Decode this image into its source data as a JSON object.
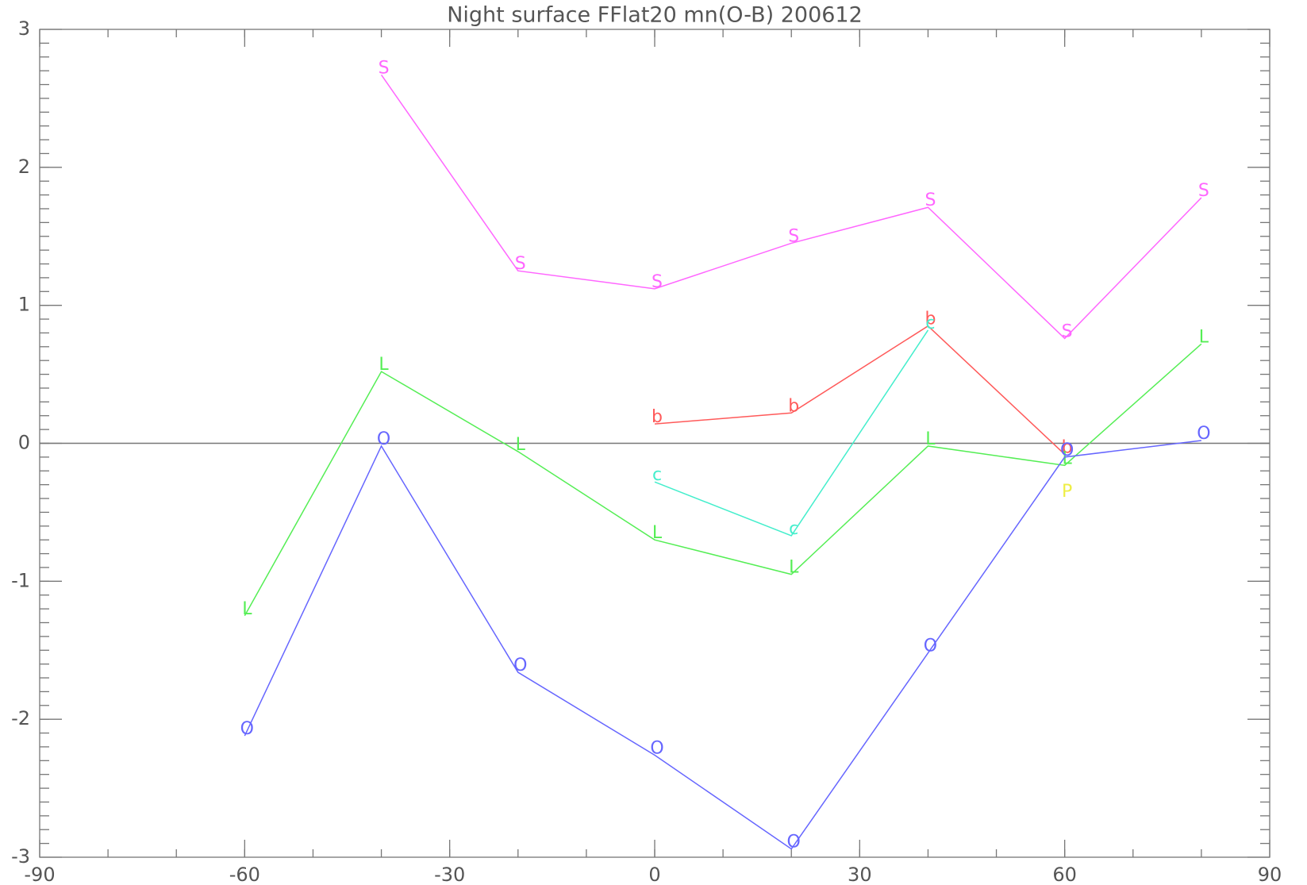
{
  "chart_data": {
    "type": "line",
    "title": "Night surface FFlat20 mn(O-B) 200612",
    "xlim": [
      -90,
      90
    ],
    "xticks": [
      -90,
      -60,
      -30,
      0,
      30,
      60,
      90
    ],
    "ylim": [
      -3,
      3
    ],
    "yticks": [
      -3,
      -2,
      -1,
      0,
      1,
      2,
      3
    ],
    "x_minor_step": 10,
    "y_minor_step": 0.1,
    "reference_line": 0,
    "series": [
      {
        "marker": "S",
        "color": "#ff66ff",
        "x": [
          -40,
          -20,
          0,
          20,
          40,
          60,
          80
        ],
        "values": [
          2.67,
          1.25,
          1.12,
          1.45,
          1.71,
          0.76,
          1.78
        ]
      },
      {
        "marker": "b",
        "color": "#ff5a5a",
        "x": [
          0,
          20,
          40,
          60
        ],
        "values": [
          0.14,
          0.22,
          0.85,
          -0.08
        ]
      },
      {
        "marker": "c",
        "color": "#44eecc",
        "x": [
          0,
          20,
          40
        ],
        "values": [
          -0.28,
          -0.67,
          0.82
        ]
      },
      {
        "marker": "L",
        "color": "#55ee55",
        "x": [
          -60,
          -40,
          -20,
          0,
          20,
          40,
          60,
          80
        ],
        "values": [
          -1.25,
          0.52,
          -0.06,
          -0.7,
          -0.95,
          -0.02,
          -0.16,
          0.72
        ]
      },
      {
        "marker": "O",
        "color": "#6666ff",
        "x": [
          -60,
          -40,
          -20,
          0,
          20,
          40,
          60,
          80
        ],
        "values": [
          -2.12,
          -0.02,
          -1.66,
          -2.26,
          -2.94,
          -1.52,
          -0.1,
          0.02
        ]
      },
      {
        "marker": "P",
        "color": "#eeee44",
        "x": [
          60
        ],
        "values": [
          -0.4
        ]
      }
    ]
  }
}
